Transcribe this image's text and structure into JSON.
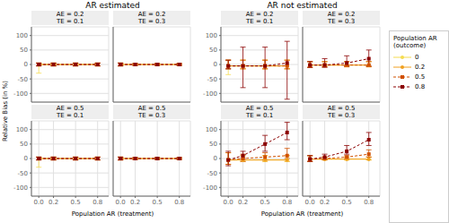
{
  "chart_data": [
    {
      "type": "line",
      "title": "AR estimated",
      "x_label": "Population AR (treatment)",
      "y_label": "Relative Bias (in %)",
      "x": [
        0.0,
        0.2,
        0.5,
        0.8
      ],
      "xlim": [
        -0.1,
        0.95
      ],
      "xticks": [
        {
          "value": 0.0,
          "label": "0.0"
        },
        0.2,
        0.5,
        0.8
      ],
      "ylim": [
        -130,
        130
      ],
      "yticks": [
        -100,
        -50,
        0,
        50,
        100
      ],
      "grid": true,
      "series": [
        {
          "name": "0",
          "color": "#F5DC50",
          "line_style": "solid",
          "marker": "circle"
        },
        {
          "name": "0.2",
          "color": "#F0A020",
          "line_style": "solid",
          "marker": "circle"
        },
        {
          "name": "0.5",
          "color": "#D05000",
          "line_style": "dashed",
          "marker": "square"
        },
        {
          "name": "0.8",
          "color": "#8B0000",
          "line_style": "dashed",
          "marker": "square"
        }
      ],
      "panels": [
        {
          "strips": [
            "AE = 0.2",
            "TE = 0.1"
          ],
          "values": [
            [
              0,
              0,
              0,
              0
            ],
            [
              0,
              0,
              0,
              0
            ],
            [
              0,
              0,
              0,
              0
            ],
            [
              0,
              0,
              0,
              0
            ]
          ],
          "ci_low": [
            [
              -30,
              -5,
              -5,
              -5
            ],
            [
              -5,
              -5,
              -5,
              -5
            ],
            [
              -5,
              -5,
              -5,
              -5
            ],
            [
              -5,
              -5,
              -5,
              -5
            ]
          ],
          "ci_high": [
            [
              5,
              5,
              5,
              5
            ],
            [
              5,
              5,
              5,
              5
            ],
            [
              5,
              5,
              5,
              5
            ],
            [
              5,
              5,
              5,
              5
            ]
          ]
        },
        {
          "strips": [
            "AE = 0.2",
            "TE = 0.3"
          ],
          "values": [
            [
              0,
              0,
              0,
              0
            ],
            [
              0,
              0,
              0,
              0
            ],
            [
              0,
              0,
              0,
              0
            ],
            [
              0,
              0,
              0,
              0
            ]
          ],
          "ci_low": [
            [
              -5,
              -3,
              -3,
              -3
            ],
            [
              -5,
              -3,
              -3,
              -3
            ],
            [
              -5,
              -3,
              -3,
              -3
            ],
            [
              -5,
              -3,
              -3,
              -3
            ]
          ],
          "ci_high": [
            [
              5,
              3,
              3,
              3
            ],
            [
              5,
              3,
              3,
              3
            ],
            [
              5,
              3,
              3,
              3
            ],
            [
              5,
              3,
              3,
              3
            ]
          ]
        },
        {
          "strips": [
            "AE = 0.5",
            "TE = 0.1"
          ],
          "values": [
            [
              0,
              0,
              0,
              0
            ],
            [
              0,
              0,
              0,
              0
            ],
            [
              0,
              0,
              0,
              0
            ],
            [
              0,
              0,
              0,
              0
            ]
          ],
          "ci_low": [
            [
              -30,
              -5,
              -5,
              -5
            ],
            [
              -5,
              -5,
              -5,
              -5
            ],
            [
              -5,
              -5,
              -5,
              -5
            ],
            [
              -5,
              -5,
              -5,
              -5
            ]
          ],
          "ci_high": [
            [
              5,
              5,
              5,
              5
            ],
            [
              5,
              5,
              5,
              5
            ],
            [
              5,
              5,
              5,
              5
            ],
            [
              5,
              5,
              5,
              5
            ]
          ]
        },
        {
          "strips": [
            "AE = 0.5",
            "TE = 0.3"
          ],
          "values": [
            [
              0,
              0,
              0,
              0
            ],
            [
              0,
              0,
              0,
              0
            ],
            [
              0,
              0,
              0,
              0
            ],
            [
              0,
              0,
              0,
              0
            ]
          ],
          "ci_low": [
            [
              -5,
              -3,
              -3,
              -3
            ],
            [
              -5,
              -3,
              -3,
              -3
            ],
            [
              -5,
              -3,
              -3,
              -3
            ],
            [
              -5,
              -3,
              -3,
              -3
            ]
          ],
          "ci_high": [
            [
              5,
              3,
              3,
              3
            ],
            [
              5,
              3,
              3,
              3
            ],
            [
              5,
              3,
              3,
              3
            ],
            [
              5,
              3,
              3,
              3
            ]
          ]
        }
      ]
    },
    {
      "type": "line",
      "title": "AR not estimated",
      "x_label": "Population AR (treatment)",
      "x": [
        0.0,
        0.2,
        0.5,
        0.8
      ],
      "xlim": [
        -0.1,
        0.95
      ],
      "xticks": [
        {
          "value": 0.0,
          "label": "0.0"
        },
        0.2,
        0.5,
        0.8
      ],
      "ylim": [
        -130,
        130
      ],
      "yticks": [
        -100,
        -50,
        0,
        50,
        100
      ],
      "grid": true,
      "legend": "right",
      "legend_title": "Population AR (outcome)",
      "series": [
        {
          "name": "0",
          "color": "#F5DC50",
          "line_style": "solid",
          "marker": "circle"
        },
        {
          "name": "0.2",
          "color": "#F0A020",
          "line_style": "solid",
          "marker": "circle"
        },
        {
          "name": "0.5",
          "color": "#D05000",
          "line_style": "dashed",
          "marker": "square"
        },
        {
          "name": "0.8",
          "color": "#8B0000",
          "line_style": "dashed",
          "marker": "square"
        }
      ],
      "panels": [
        {
          "strips": [
            "AE = 0.2",
            "TE = 0.1"
          ],
          "values": [
            [
              -5,
              -5,
              -5,
              -5
            ],
            [
              -5,
              -5,
              -5,
              -5
            ],
            [
              -5,
              -5,
              -5,
              -5
            ],
            [
              -5,
              -5,
              -5,
              5
            ]
          ],
          "ci_low": [
            [
              -35,
              -15,
              -15,
              -15
            ],
            [
              -15,
              -15,
              -15,
              -15
            ],
            [
              -15,
              -15,
              -15,
              -15
            ],
            [
              -15,
              -80,
              -80,
              -120
            ]
          ],
          "ci_high": [
            [
              15,
              15,
              15,
              15
            ],
            [
              15,
              15,
              15,
              15
            ],
            [
              15,
              15,
              15,
              15
            ],
            [
              15,
              60,
              60,
              80
            ]
          ]
        },
        {
          "strips": [
            "AE = 0.2",
            "TE = 0.3"
          ],
          "values": [
            [
              -2,
              -2,
              -2,
              -2
            ],
            [
              -2,
              -2,
              -2,
              -2
            ],
            [
              -2,
              -2,
              -2,
              -2
            ],
            [
              -2,
              -2,
              5,
              20
            ]
          ],
          "ci_low": [
            [
              -10,
              -8,
              -8,
              -8
            ],
            [
              -10,
              -8,
              -8,
              -8
            ],
            [
              -10,
              -8,
              -8,
              -8
            ],
            [
              -10,
              -10,
              -5,
              -5
            ]
          ],
          "ci_high": [
            [
              10,
              10,
              10,
              10
            ],
            [
              10,
              10,
              10,
              10
            ],
            [
              10,
              10,
              10,
              10
            ],
            [
              10,
              20,
              30,
              50
            ]
          ]
        },
        {
          "strips": [
            "AE = 0.5",
            "TE = 0.1"
          ],
          "values": [
            [
              -5,
              -5,
              -5,
              -5
            ],
            [
              -5,
              -5,
              -5,
              -5
            ],
            [
              -5,
              0,
              5,
              10
            ],
            [
              -5,
              10,
              50,
              90
            ]
          ],
          "ci_low": [
            [
              -20,
              -10,
              -10,
              -10
            ],
            [
              -20,
              -10,
              -10,
              -10
            ],
            [
              -20,
              -10,
              -5,
              0
            ],
            [
              -25,
              0,
              25,
              65
            ]
          ],
          "ci_high": [
            [
              20,
              10,
              10,
              10
            ],
            [
              20,
              10,
              10,
              10
            ],
            [
              20,
              15,
              20,
              35
            ],
            [
              25,
              25,
              80,
              125
            ]
          ]
        },
        {
          "strips": [
            "AE = 0.5",
            "TE = 0.3"
          ],
          "values": [
            [
              -2,
              -2,
              -2,
              -2
            ],
            [
              -2,
              -2,
              -2,
              -2
            ],
            [
              -2,
              0,
              5,
              15
            ],
            [
              -2,
              5,
              25,
              65
            ]
          ],
          "ci_low": [
            [
              -10,
              -5,
              -5,
              -5
            ],
            [
              -10,
              -5,
              -5,
              -5
            ],
            [
              -10,
              -5,
              0,
              5
            ],
            [
              -10,
              0,
              15,
              45
            ]
          ],
          "ci_high": [
            [
              10,
              5,
              5,
              5
            ],
            [
              10,
              5,
              5,
              5
            ],
            [
              10,
              5,
              10,
              30
            ],
            [
              10,
              15,
              45,
              90
            ]
          ]
        }
      ]
    }
  ]
}
